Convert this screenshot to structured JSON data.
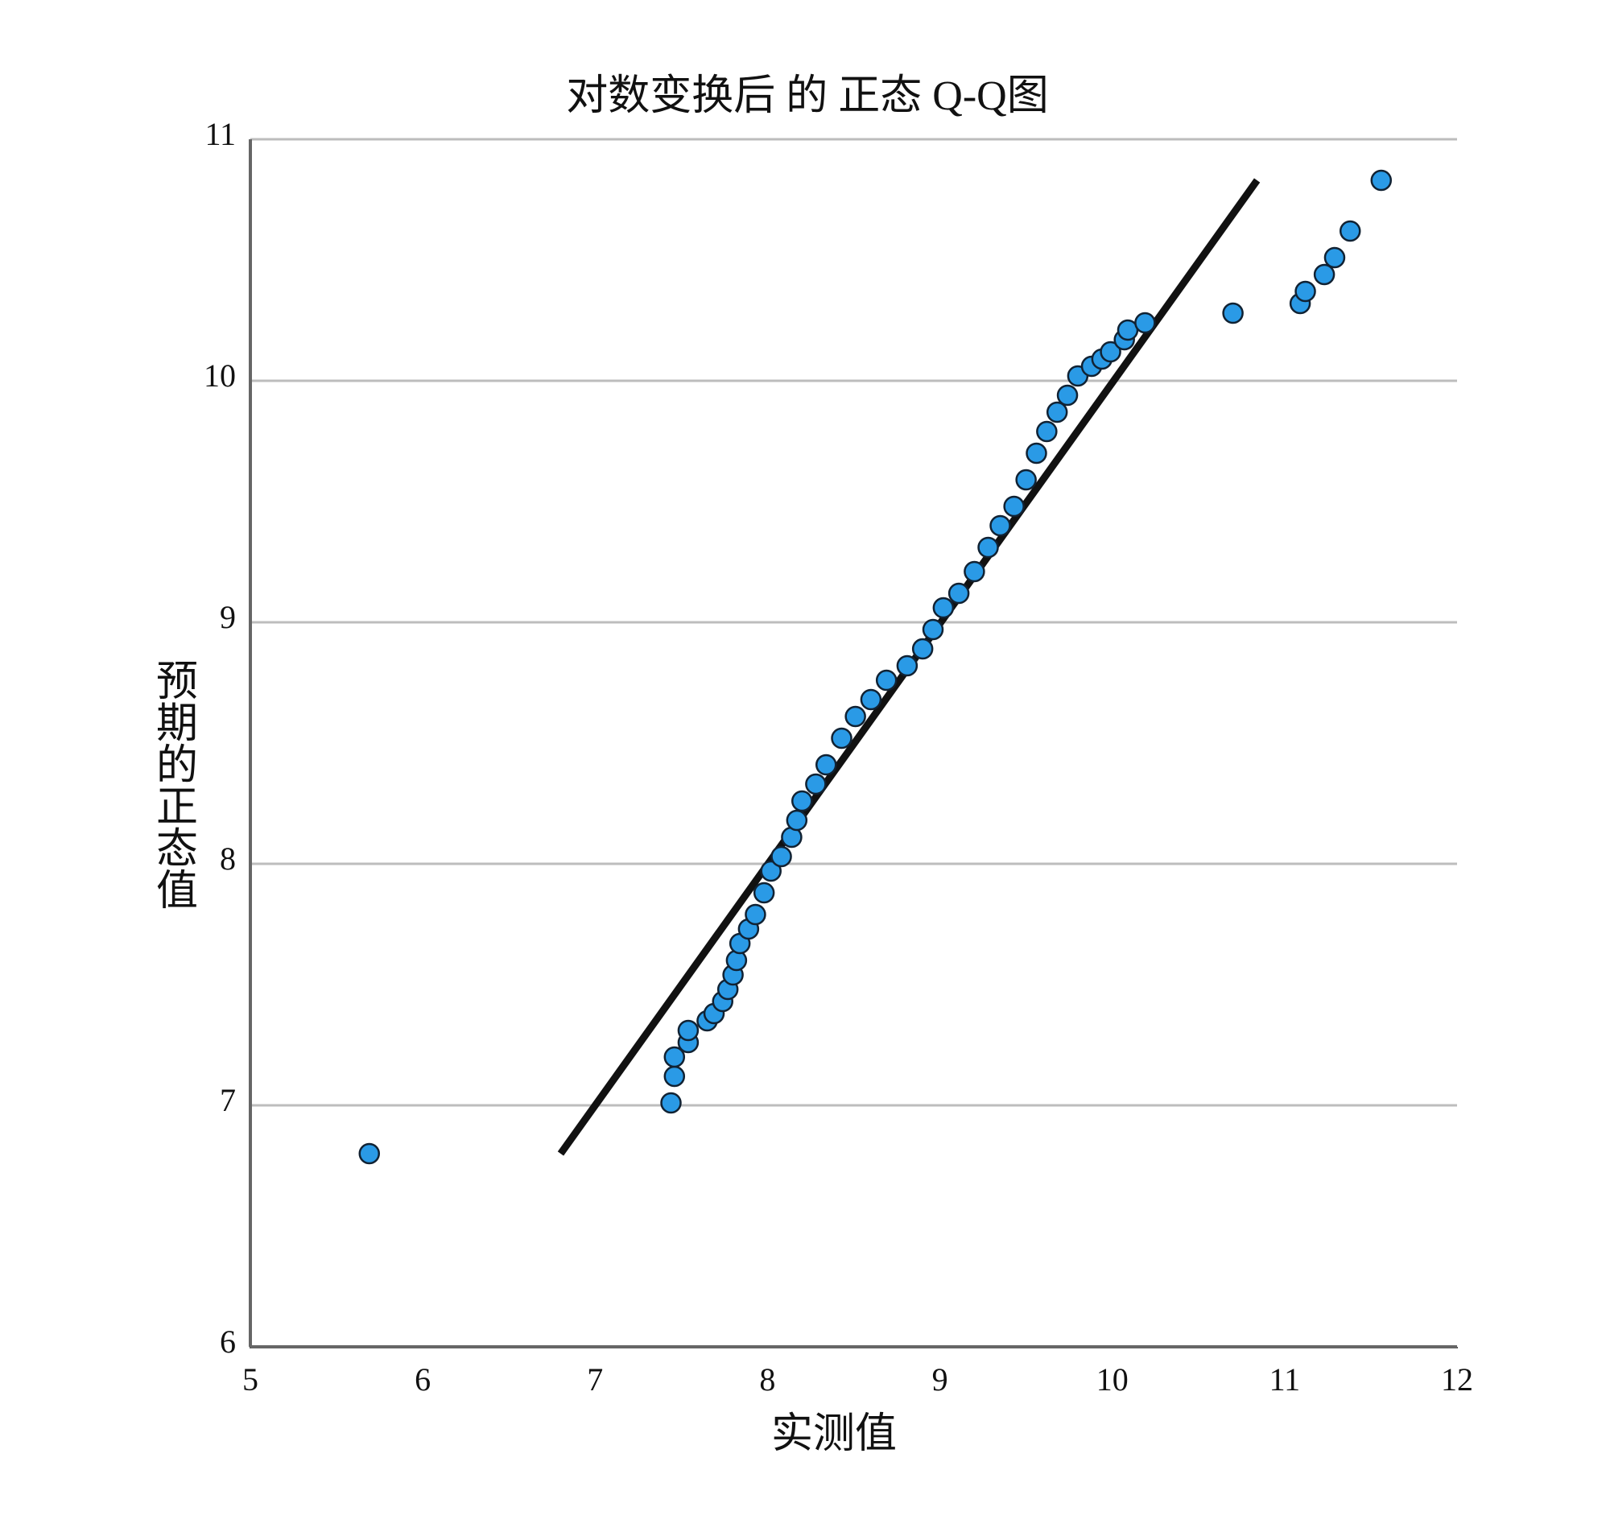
{
  "chart_data": {
    "type": "scatter",
    "title": "对数变换后 的 正态 Q-Q图",
    "x_label": "实测值",
    "y_label": "预期的正态值",
    "x": [
      5.69,
      7.44,
      7.46,
      7.46,
      7.54,
      7.54,
      7.65,
      7.69,
      7.74,
      7.77,
      7.8,
      7.82,
      7.84,
      7.89,
      7.93,
      7.98,
      8.02,
      8.08,
      8.14,
      8.17,
      8.2,
      8.28,
      8.34,
      8.43,
      8.51,
      8.6,
      8.69,
      8.81,
      8.9,
      8.96,
      9.02,
      9.11,
      9.2,
      9.28,
      9.35,
      9.43,
      9.5,
      9.56,
      9.62,
      9.68,
      9.74,
      9.8,
      9.88,
      9.94,
      9.99,
      10.07,
      10.09,
      10.19,
      10.7,
      11.09,
      11.12,
      11.23,
      11.29,
      11.38,
      11.56
    ],
    "values": [
      6.8,
      7.01,
      7.12,
      7.2,
      7.26,
      7.31,
      7.35,
      7.38,
      7.43,
      7.48,
      7.54,
      7.6,
      7.67,
      7.73,
      7.79,
      7.88,
      7.97,
      8.03,
      8.11,
      8.18,
      8.26,
      8.33,
      8.41,
      8.52,
      8.61,
      8.68,
      8.76,
      8.82,
      8.89,
      8.97,
      9.06,
      9.12,
      9.21,
      9.31,
      9.4,
      9.48,
      9.59,
      9.7,
      9.79,
      9.87,
      9.94,
      10.02,
      10.06,
      10.09,
      10.12,
      10.17,
      10.21,
      10.24,
      10.28,
      10.32,
      10.37,
      10.44,
      10.51,
      10.62,
      10.83
    ],
    "color": "#2a9ae6",
    "line": {
      "x": [
        6.8,
        10.84
      ],
      "values": [
        6.8,
        10.83
      ],
      "color": "#111111"
    },
    "xlim": [
      5,
      12
    ],
    "xticks": [
      5,
      6,
      7,
      8,
      9,
      10,
      11,
      12
    ],
    "ylim": [
      6,
      11
    ],
    "yticks": [
      6,
      7,
      8,
      9,
      10,
      11
    ],
    "grid": true
  }
}
